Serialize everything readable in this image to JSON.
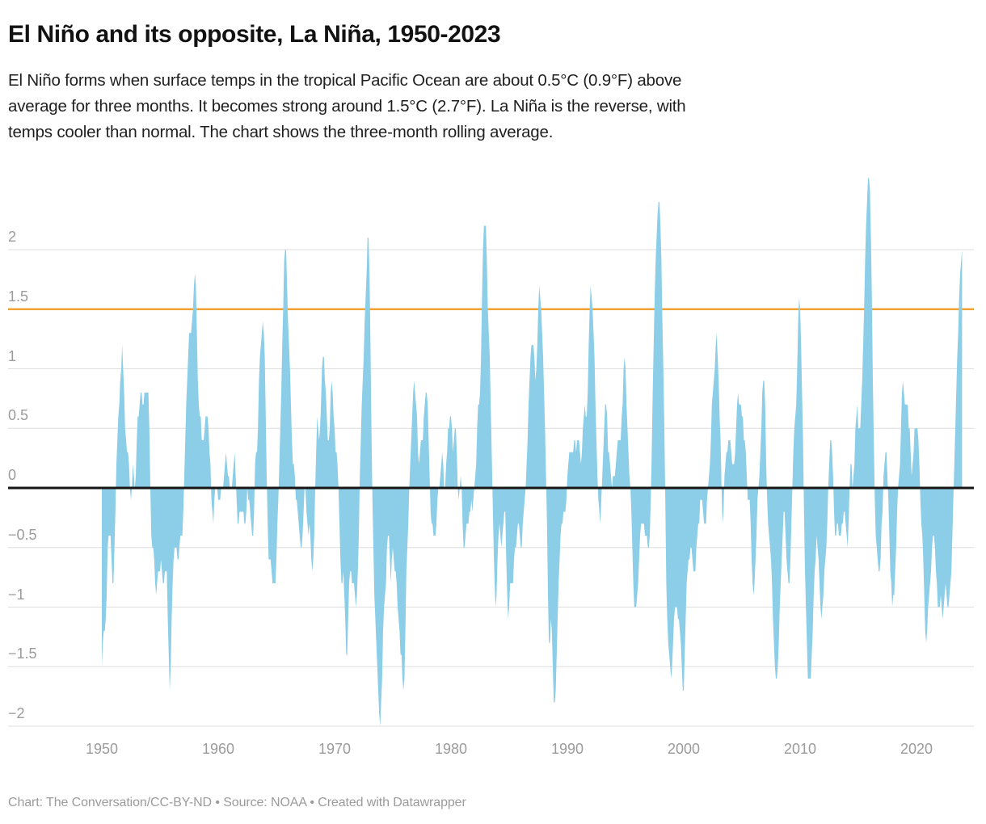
{
  "header": {
    "title": "El Niño and its opposite, La Niña, 1950-2023",
    "description_lines": [
      "El Niño forms when surface temps in the tropical Pacific Ocean are about 0.5°C (0.9°F) above",
      "average for three months. It becomes strong around 1.5°C (2.7°F). La Niña is the reverse, with",
      "temps cooler than normal. The chart shows the three-month rolling average."
    ]
  },
  "footer": {
    "text": "Chart: The Conversation/CC-BY-ND • Source: NOAA • Created with Datawrapper"
  },
  "chart_data": {
    "type": "area",
    "title": "El Niño and its opposite, La Niña, 1950-2023",
    "xlabel": "",
    "ylabel": "",
    "x_range_years": [
      1950,
      2024
    ],
    "ylim": [
      -2.4,
      2.75
    ],
    "grid": "horizontal",
    "gridline_color": "#dedede",
    "axis_label_color": "#9b9b9b",
    "y_ticks": [
      {
        "value": 2,
        "label": "2"
      },
      {
        "value": 1.5,
        "label": "1.5"
      },
      {
        "value": 1,
        "label": "1"
      },
      {
        "value": 0.5,
        "label": "0.5"
      },
      {
        "value": 0,
        "label": "0"
      },
      {
        "value": -0.5,
        "label": "−0.5"
      },
      {
        "value": -1,
        "label": "−1"
      },
      {
        "value": -1.5,
        "label": "−1.5"
      },
      {
        "value": -2,
        "label": "−2"
      }
    ],
    "x_ticks": [
      {
        "year": 1950,
        "label": "1950"
      },
      {
        "year": 1960,
        "label": "1960"
      },
      {
        "year": 1970,
        "label": "1970"
      },
      {
        "year": 1980,
        "label": "1980"
      },
      {
        "year": 1990,
        "label": "1990"
      },
      {
        "year": 2000,
        "label": "2000"
      },
      {
        "year": 2010,
        "label": "2010"
      },
      {
        "year": 2020,
        "label": "2020"
      }
    ],
    "threshold_line": {
      "value": 1.5,
      "color": "#f0a232",
      "name": "strong-el-nino-threshold"
    },
    "zero_baseline": {
      "value": 0,
      "color": "#161616"
    },
    "series": [
      {
        "name": "Three-month rolling average temperature anomaly (°C)",
        "color": "#8ccde7",
        "start_year": 1950,
        "values_per_year": 12,
        "values_by_year": [
          [
            -1.5,
            -1.3,
            -1.2,
            -1.2,
            -1.1,
            -0.9,
            -0.5,
            -0.4,
            -0.4,
            -0.4,
            -0.6,
            -0.8
          ],
          [
            -0.8,
            -0.5,
            -0.2,
            0.2,
            0.4,
            0.6,
            0.7,
            0.9,
            1.0,
            1.2,
            1.0,
            0.8
          ],
          [
            0.5,
            0.4,
            0.3,
            0.3,
            0.2,
            0.0,
            -0.1,
            0.0,
            0.2,
            0.1,
            0.0,
            0.1
          ],
          [
            0.4,
            0.6,
            0.6,
            0.7,
            0.8,
            0.8,
            0.7,
            0.7,
            0.8,
            0.8,
            0.8,
            0.8
          ],
          [
            0.8,
            0.5,
            0.0,
            -0.4,
            -0.5,
            -0.5,
            -0.6,
            -0.8,
            -0.9,
            -0.8,
            -0.7,
            -0.7
          ],
          [
            -0.7,
            -0.6,
            -0.7,
            -0.8,
            -0.8,
            -0.7,
            -0.7,
            -0.7,
            -1.1,
            -1.4,
            -1.7,
            -1.5
          ],
          [
            -1.1,
            -0.8,
            -0.6,
            -0.5,
            -0.5,
            -0.5,
            -0.6,
            -0.6,
            -0.5,
            -0.4,
            -0.4,
            -0.4
          ],
          [
            -0.2,
            0.1,
            0.4,
            0.7,
            0.9,
            1.1,
            1.3,
            1.3,
            1.3,
            1.4,
            1.5,
            1.7
          ],
          [
            1.8,
            1.7,
            1.3,
            0.9,
            0.7,
            0.6,
            0.6,
            0.4,
            0.4,
            0.4,
            0.5,
            0.6
          ],
          [
            0.6,
            0.6,
            0.5,
            0.3,
            0.2,
            -0.1,
            -0.2,
            -0.3,
            -0.1,
            0.0,
            0.0,
            0.0
          ],
          [
            -0.1,
            -0.1,
            -0.1,
            0.0,
            0.0,
            0.0,
            0.1,
            0.2,
            0.3,
            0.2,
            0.1,
            0.1
          ],
          [
            0.0,
            0.0,
            0.0,
            0.1,
            0.2,
            0.3,
            0.1,
            -0.1,
            -0.3,
            -0.3,
            -0.2,
            -0.2
          ],
          [
            -0.2,
            -0.2,
            -0.2,
            -0.3,
            -0.3,
            -0.2,
            0.0,
            -0.1,
            -0.1,
            -0.2,
            -0.3,
            -0.4
          ],
          [
            -0.4,
            -0.2,
            0.2,
            0.3,
            0.3,
            0.5,
            0.9,
            1.1,
            1.2,
            1.3,
            1.4,
            1.3
          ],
          [
            1.1,
            0.6,
            0.1,
            -0.3,
            -0.6,
            -0.6,
            -0.6,
            -0.7,
            -0.8,
            -0.8,
            -0.8,
            -0.8
          ],
          [
            -0.6,
            -0.3,
            -0.1,
            0.2,
            0.5,
            0.8,
            1.2,
            1.5,
            1.9,
            2.0,
            2.0,
            1.7
          ],
          [
            1.4,
            1.2,
            1.0,
            0.7,
            0.4,
            0.2,
            0.2,
            0.1,
            -0.1,
            -0.1,
            -0.2,
            -0.3
          ],
          [
            -0.4,
            -0.5,
            -0.5,
            -0.4,
            -0.2,
            0.0,
            0.0,
            -0.2,
            -0.3,
            -0.4,
            -0.3,
            -0.4
          ],
          [
            -0.6,
            -0.7,
            -0.6,
            -0.4,
            0.0,
            0.3,
            0.6,
            0.5,
            0.4,
            0.5,
            0.7,
            1.0
          ],
          [
            1.1,
            1.1,
            0.9,
            0.8,
            0.6,
            0.4,
            0.4,
            0.5,
            0.8,
            0.9,
            0.8,
            0.6
          ],
          [
            0.5,
            0.3,
            0.3,
            0.2,
            0.0,
            -0.3,
            -0.6,
            -0.8,
            -0.8,
            -0.7,
            -0.9,
            -1.1
          ],
          [
            -1.4,
            -1.4,
            -1.1,
            -0.8,
            -0.7,
            -0.7,
            -0.8,
            -0.8,
            -0.8,
            -0.9,
            -1.0,
            -0.9
          ],
          [
            -0.7,
            -0.4,
            0.1,
            0.4,
            0.7,
            0.9,
            1.1,
            1.4,
            1.6,
            1.8,
            2.1,
            2.1
          ],
          [
            1.8,
            1.2,
            0.5,
            -0.1,
            -0.5,
            -0.9,
            -1.1,
            -1.3,
            -1.5,
            -1.7,
            -1.9,
            -2.0
          ],
          [
            -1.8,
            -1.6,
            -1.2,
            -1.0,
            -0.9,
            -0.8,
            -0.5,
            -0.4,
            -0.4,
            -0.6,
            -0.8,
            -0.6
          ],
          [
            -0.5,
            -0.6,
            -0.7,
            -0.7,
            -0.8,
            -1.0,
            -1.1,
            -1.2,
            -1.4,
            -1.4,
            -1.6,
            -1.7
          ],
          [
            -1.6,
            -1.2,
            -0.7,
            -0.5,
            -0.3,
            0.0,
            0.2,
            0.4,
            0.6,
            0.8,
            0.9,
            0.8
          ],
          [
            0.7,
            0.6,
            0.3,
            0.2,
            0.3,
            0.4,
            0.4,
            0.4,
            0.6,
            0.7,
            0.8,
            0.8
          ],
          [
            0.7,
            0.4,
            0.1,
            -0.2,
            -0.3,
            -0.3,
            -0.4,
            -0.4,
            -0.4,
            -0.3,
            -0.1,
            0.0
          ],
          [
            0.0,
            0.1,
            0.2,
            0.3,
            0.2,
            0.0,
            0.0,
            0.2,
            0.3,
            0.5,
            0.5,
            0.6
          ],
          [
            0.6,
            0.5,
            0.3,
            0.4,
            0.5,
            0.5,
            0.3,
            0.0,
            -0.1,
            0.0,
            0.1,
            0.0
          ],
          [
            -0.3,
            -0.5,
            -0.5,
            -0.4,
            -0.3,
            -0.3,
            -0.3,
            -0.2,
            -0.2,
            -0.1,
            -0.2,
            -0.1
          ],
          [
            0.0,
            0.1,
            0.2,
            0.5,
            0.7,
            0.7,
            0.8,
            1.1,
            1.6,
            2.0,
            2.2,
            2.2
          ],
          [
            2.2,
            1.9,
            1.5,
            1.3,
            1.1,
            0.7,
            0.3,
            -0.1,
            -0.5,
            -0.8,
            -1.0,
            -0.9
          ],
          [
            -0.6,
            -0.4,
            -0.3,
            -0.4,
            -0.5,
            -0.4,
            -0.3,
            -0.2,
            -0.2,
            -0.6,
            -0.9,
            -1.1
          ],
          [
            -1.0,
            -0.8,
            -0.8,
            -0.8,
            -0.8,
            -0.6,
            -0.5,
            -0.5,
            -0.4,
            -0.3,
            -0.3,
            -0.4
          ],
          [
            -0.5,
            -0.5,
            -0.3,
            -0.2,
            -0.1,
            0.0,
            0.2,
            0.4,
            0.7,
            0.9,
            1.1,
            1.2
          ],
          [
            1.2,
            1.2,
            1.1,
            0.9,
            1.0,
            1.2,
            1.5,
            1.7,
            1.6,
            1.5,
            1.3,
            1.1
          ],
          [
            0.8,
            0.5,
            0.1,
            -0.3,
            -0.9,
            -1.3,
            -1.3,
            -1.1,
            -1.2,
            -1.5,
            -1.8,
            -1.8
          ],
          [
            -1.7,
            -1.4,
            -1.1,
            -0.8,
            -0.6,
            -0.4,
            -0.3,
            -0.3,
            -0.2,
            -0.2,
            -0.2,
            -0.1
          ],
          [
            0.1,
            0.2,
            0.3,
            0.3,
            0.3,
            0.3,
            0.3,
            0.4,
            0.4,
            0.3,
            0.4,
            0.4
          ],
          [
            0.4,
            0.3,
            0.2,
            0.3,
            0.5,
            0.6,
            0.7,
            0.6,
            0.6,
            0.8,
            1.2,
            1.5
          ],
          [
            1.7,
            1.6,
            1.5,
            1.3,
            1.1,
            0.7,
            0.4,
            0.1,
            -0.1,
            -0.2,
            -0.3,
            -0.1
          ],
          [
            0.1,
            0.3,
            0.5,
            0.7,
            0.7,
            0.6,
            0.3,
            0.3,
            0.2,
            0.1,
            0.0,
            0.1
          ],
          [
            0.1,
            0.1,
            0.2,
            0.3,
            0.4,
            0.4,
            0.4,
            0.4,
            0.6,
            0.7,
            1.0,
            1.1
          ],
          [
            1.0,
            0.7,
            0.5,
            0.3,
            0.1,
            0.0,
            -0.2,
            -0.5,
            -0.8,
            -1.0,
            -1.0,
            -1.0
          ],
          [
            -0.9,
            -0.8,
            -0.6,
            -0.4,
            -0.3,
            -0.3,
            -0.3,
            -0.3,
            -0.4,
            -0.4,
            -0.4,
            -0.5
          ],
          [
            -0.5,
            -0.4,
            -0.1,
            0.3,
            0.8,
            1.2,
            1.6,
            1.9,
            2.1,
            2.3,
            2.4,
            2.4
          ],
          [
            2.2,
            1.9,
            1.4,
            1.0,
            0.5,
            -0.1,
            -0.8,
            -1.1,
            -1.3,
            -1.4,
            -1.5,
            -1.6
          ],
          [
            -1.5,
            -1.3,
            -1.1,
            -1.0,
            -1.0,
            -1.0,
            -1.1,
            -1.1,
            -1.2,
            -1.3,
            -1.5,
            -1.7
          ],
          [
            -1.7,
            -1.4,
            -1.1,
            -0.8,
            -0.7,
            -0.6,
            -0.6,
            -0.5,
            -0.5,
            -0.6,
            -0.7,
            -0.7
          ],
          [
            -0.7,
            -0.5,
            -0.4,
            -0.3,
            -0.3,
            -0.1,
            -0.1,
            -0.1,
            -0.2,
            -0.3,
            -0.3,
            -0.3
          ],
          [
            -0.1,
            0.0,
            0.1,
            0.2,
            0.4,
            0.7,
            0.8,
            0.9,
            1.0,
            1.2,
            1.3,
            1.1
          ],
          [
            0.9,
            0.6,
            0.4,
            0.0,
            -0.3,
            -0.2,
            0.1,
            0.2,
            0.3,
            0.3,
            0.4,
            0.4
          ],
          [
            0.4,
            0.3,
            0.2,
            0.2,
            0.2,
            0.3,
            0.5,
            0.7,
            0.8,
            0.7,
            0.7,
            0.7
          ],
          [
            0.6,
            0.6,
            0.4,
            0.4,
            0.3,
            0.1,
            -0.1,
            -0.1,
            -0.1,
            -0.3,
            -0.6,
            -0.8
          ],
          [
            -0.9,
            -0.8,
            -0.6,
            -0.4,
            -0.1,
            0.0,
            0.1,
            0.3,
            0.5,
            0.8,
            0.9,
            0.9
          ],
          [
            0.7,
            0.2,
            -0.1,
            -0.3,
            -0.4,
            -0.5,
            -0.6,
            -0.8,
            -1.1,
            -1.3,
            -1.5,
            -1.6
          ],
          [
            -1.6,
            -1.5,
            -1.3,
            -1.0,
            -0.8,
            -0.6,
            -0.4,
            -0.2,
            -0.2,
            -0.4,
            -0.6,
            -0.7
          ],
          [
            -0.8,
            -0.8,
            -0.6,
            -0.3,
            0.0,
            0.3,
            0.5,
            0.6,
            0.7,
            1.0,
            1.4,
            1.6
          ],
          [
            1.5,
            1.2,
            0.8,
            0.4,
            -0.2,
            -0.7,
            -1.0,
            -1.3,
            -1.6,
            -1.6,
            -1.6,
            -1.6
          ],
          [
            -1.4,
            -1.2,
            -0.9,
            -0.7,
            -0.6,
            -0.4,
            -0.5,
            -0.6,
            -0.8,
            -1.0,
            -1.1,
            -1.0
          ],
          [
            -0.9,
            -0.7,
            -0.6,
            -0.5,
            -0.3,
            0.0,
            0.2,
            0.4,
            0.4,
            0.3,
            0.1,
            -0.2
          ],
          [
            -0.4,
            -0.4,
            -0.3,
            -0.3,
            -0.4,
            -0.4,
            -0.4,
            -0.3,
            -0.3,
            -0.2,
            -0.2,
            -0.3
          ],
          [
            -0.4,
            -0.5,
            -0.3,
            0.0,
            0.2,
            0.2,
            0.0,
            0.1,
            0.2,
            0.5,
            0.6,
            0.7
          ],
          [
            0.5,
            0.5,
            0.5,
            0.7,
            0.9,
            1.2,
            1.5,
            1.9,
            2.2,
            2.4,
            2.6,
            2.6
          ],
          [
            2.5,
            2.1,
            1.6,
            0.9,
            0.4,
            -0.1,
            -0.4,
            -0.5,
            -0.6,
            -0.7,
            -0.7,
            -0.6
          ],
          [
            -0.3,
            -0.2,
            0.1,
            0.2,
            0.3,
            0.3,
            0.1,
            -0.1,
            -0.4,
            -0.7,
            -0.8,
            -1.0
          ],
          [
            -0.9,
            -0.9,
            -0.7,
            -0.5,
            -0.2,
            0.0,
            0.1,
            0.2,
            0.5,
            0.8,
            0.9,
            0.8
          ],
          [
            0.7,
            0.7,
            0.7,
            0.7,
            0.5,
            0.5,
            0.3,
            0.1,
            0.2,
            0.3,
            0.5,
            0.5
          ],
          [
            0.5,
            0.5,
            0.4,
            0.2,
            -0.1,
            -0.3,
            -0.4,
            -0.6,
            -0.9,
            -1.2,
            -1.3,
            -1.2
          ],
          [
            -1.0,
            -0.9,
            -0.8,
            -0.7,
            -0.5,
            -0.4,
            -0.4,
            -0.5,
            -0.7,
            -0.8,
            -1.0,
            -1.0
          ],
          [
            -1.0,
            -0.9,
            -1.0,
            -1.1,
            -1.0,
            -0.9,
            -0.8,
            -0.9,
            -1.0,
            -1.0,
            -0.9,
            -0.8
          ],
          [
            -0.7,
            -0.4,
            -0.1,
            0.2,
            0.5,
            0.8,
            1.1,
            1.3,
            1.6,
            1.8,
            1.9,
            2.0
          ]
        ]
      }
    ]
  }
}
